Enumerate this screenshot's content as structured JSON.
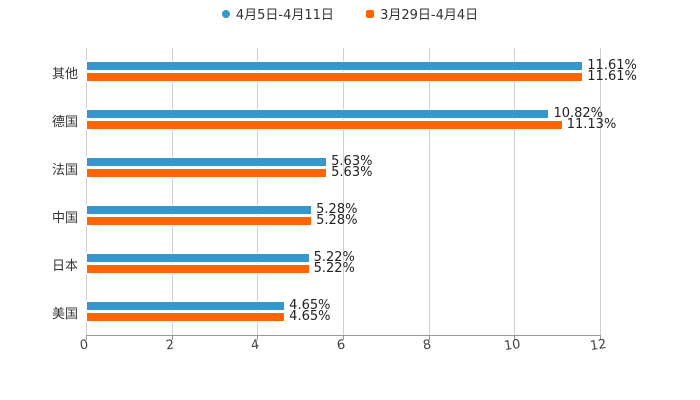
{
  "legend": {
    "series1": "4月5日-4月11日",
    "series2": "3月29日-4月4日"
  },
  "colors": {
    "series1": "#3399cc",
    "series2": "#ff6600"
  },
  "axis": {
    "ticks": [
      "0",
      "2",
      "4",
      "6",
      "8",
      "10",
      "12"
    ]
  },
  "categories": [
    "其他",
    "德国",
    "法国",
    "中国",
    "日本",
    "美国"
  ],
  "labels": {
    "series1": [
      "11.61%",
      "10.82%",
      "5.63%",
      "5.28%",
      "5.22%",
      "4.65%"
    ],
    "series2": [
      "11.61%",
      "11.13%",
      "5.63%",
      "5.28%",
      "5.22%",
      "4.65%"
    ]
  },
  "chart_data": {
    "type": "bar",
    "orientation": "horizontal",
    "categories": [
      "其他",
      "德国",
      "法国",
      "中国",
      "日本",
      "美国"
    ],
    "series": [
      {
        "name": "4月5日-4月11日",
        "values": [
          11.61,
          10.82,
          5.63,
          5.28,
          5.22,
          4.65
        ],
        "color": "#3399cc"
      },
      {
        "name": "3月29日-4月4日",
        "values": [
          11.61,
          11.13,
          5.63,
          5.28,
          5.22,
          4.65
        ],
        "color": "#ff6600"
      }
    ],
    "title": "",
    "xlabel": "",
    "ylabel": "",
    "xlim": [
      0,
      12
    ],
    "xticks": [
      0,
      2,
      4,
      6,
      8,
      10,
      12
    ],
    "grid": true,
    "legend_position": "top",
    "data_labels_suffix": "%"
  }
}
